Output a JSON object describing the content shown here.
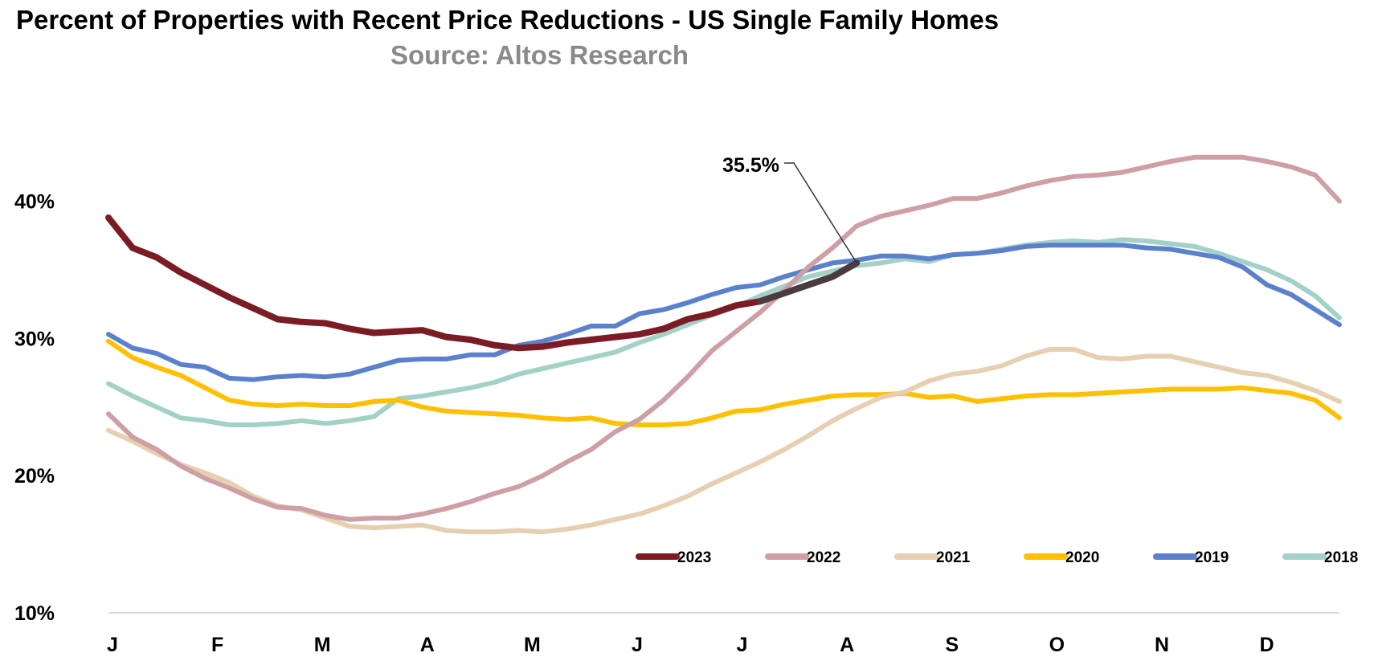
{
  "chart_data": {
    "type": "line",
    "title": "Percent of Properties with Recent Price Reductions - US Single Family Homes",
    "subtitle": "Source: Altos Research",
    "x_ticks": [
      "J",
      "F",
      "M",
      "A",
      "M",
      "J",
      "J",
      "A",
      "S",
      "O",
      "N",
      "D"
    ],
    "y_ticks": [
      "10%",
      "20%",
      "30%",
      "40%"
    ],
    "ylim": [
      10,
      46
    ],
    "xlim": [
      1,
      52
    ],
    "grid": false,
    "legend_position": "bottom-right",
    "annotation": {
      "text": "35.5%",
      "series": "2023",
      "week": 32
    },
    "series": [
      {
        "name": "2023",
        "color": "#7b1c24",
        "x": [
          1,
          2,
          3,
          4,
          5,
          6,
          7,
          8,
          9,
          10,
          11,
          12,
          13,
          14,
          15,
          16,
          17,
          18,
          19,
          20,
          21,
          22,
          23,
          24,
          25,
          26,
          27,
          28,
          29,
          30,
          31,
          32
        ],
        "values": [
          38.8,
          36.6,
          35.9,
          34.8,
          33.9,
          33.0,
          32.2,
          31.4,
          31.2,
          31.1,
          30.7,
          30.4,
          30.5,
          30.6,
          30.1,
          29.9,
          29.5,
          29.3,
          29.4,
          29.7,
          29.9,
          30.1,
          30.3,
          30.7,
          31.4,
          31.8,
          32.4,
          32.7,
          33.3,
          33.9,
          34.5,
          35.5
        ]
      },
      {
        "name": "2022",
        "color": "#cf9fa6",
        "x": [
          1,
          2,
          3,
          4,
          5,
          6,
          7,
          8,
          9,
          10,
          11,
          12,
          13,
          14,
          15,
          16,
          17,
          18,
          19,
          20,
          21,
          22,
          23,
          24,
          25,
          26,
          27,
          28,
          29,
          30,
          31,
          32,
          33,
          34,
          35,
          36,
          37,
          38,
          39,
          40,
          41,
          42,
          43,
          44,
          45,
          46,
          47,
          48,
          49,
          50,
          51,
          52
        ],
        "values": [
          24.5,
          22.8,
          21.9,
          20.7,
          19.8,
          19.1,
          18.3,
          17.7,
          17.6,
          17.1,
          16.8,
          16.9,
          16.9,
          17.2,
          17.6,
          18.1,
          18.7,
          19.2,
          20.0,
          21.0,
          21.9,
          23.2,
          24.1,
          25.5,
          27.2,
          29.1,
          30.5,
          31.9,
          33.5,
          35.2,
          36.6,
          38.2,
          38.9,
          39.3,
          39.7,
          40.2,
          40.2,
          40.6,
          41.1,
          41.5,
          41.8,
          41.9,
          42.1,
          42.5,
          42.9,
          43.2,
          43.2,
          43.2,
          42.9,
          42.5,
          41.9,
          40.0
        ]
      },
      {
        "name": "2021",
        "color": "#e7cfb1",
        "x": [
          1,
          2,
          3,
          4,
          5,
          6,
          7,
          8,
          9,
          10,
          11,
          12,
          13,
          14,
          15,
          16,
          17,
          18,
          19,
          20,
          21,
          22,
          23,
          24,
          25,
          26,
          27,
          28,
          29,
          30,
          31,
          32,
          33,
          34,
          35,
          36,
          37,
          38,
          39,
          40,
          41,
          42,
          43,
          44,
          45,
          46,
          47,
          48,
          49,
          50,
          51,
          52
        ],
        "values": [
          23.3,
          22.5,
          21.6,
          20.8,
          20.2,
          19.5,
          18.5,
          17.8,
          17.5,
          16.9,
          16.3,
          16.2,
          16.3,
          16.4,
          16.0,
          15.9,
          15.9,
          16.0,
          15.9,
          16.1,
          16.4,
          16.8,
          17.2,
          17.8,
          18.5,
          19.4,
          20.2,
          21.0,
          21.9,
          22.9,
          24.0,
          24.9,
          25.7,
          26.1,
          26.9,
          27.4,
          27.6,
          28.0,
          28.7,
          29.2,
          29.2,
          28.6,
          28.5,
          28.7,
          28.7,
          28.3,
          27.9,
          27.5,
          27.3,
          26.8,
          26.2,
          25.4
        ]
      },
      {
        "name": "2020",
        "color": "#ffc000",
        "x": [
          1,
          2,
          3,
          4,
          5,
          6,
          7,
          8,
          9,
          10,
          11,
          12,
          13,
          14,
          15,
          16,
          17,
          18,
          19,
          20,
          21,
          22,
          23,
          24,
          25,
          26,
          27,
          28,
          29,
          30,
          31,
          32,
          33,
          34,
          35,
          36,
          37,
          38,
          39,
          40,
          41,
          42,
          43,
          44,
          45,
          46,
          47,
          48,
          49,
          50,
          51,
          52
        ],
        "values": [
          29.8,
          28.6,
          27.9,
          27.3,
          26.4,
          25.5,
          25.2,
          25.1,
          25.2,
          25.1,
          25.1,
          25.4,
          25.5,
          25.0,
          24.7,
          24.6,
          24.5,
          24.4,
          24.2,
          24.1,
          24.2,
          23.8,
          23.7,
          23.7,
          23.8,
          24.2,
          24.7,
          24.8,
          25.2,
          25.5,
          25.8,
          25.9,
          25.9,
          26.0,
          25.7,
          25.8,
          25.4,
          25.6,
          25.8,
          25.9,
          25.9,
          26.0,
          26.1,
          26.2,
          26.3,
          26.3,
          26.3,
          26.4,
          26.2,
          26.0,
          25.5,
          24.2
        ]
      },
      {
        "name": "2019",
        "color": "#5b81cc",
        "x": [
          1,
          2,
          3,
          4,
          5,
          6,
          7,
          8,
          9,
          10,
          11,
          12,
          13,
          14,
          15,
          16,
          17,
          18,
          19,
          20,
          21,
          22,
          23,
          24,
          25,
          26,
          27,
          28,
          29,
          30,
          31,
          32,
          33,
          34,
          35,
          36,
          37,
          38,
          39,
          40,
          41,
          42,
          43,
          44,
          45,
          46,
          47,
          48,
          49,
          50,
          51,
          52
        ],
        "values": [
          30.3,
          29.3,
          28.9,
          28.1,
          27.9,
          27.1,
          27.0,
          27.2,
          27.3,
          27.2,
          27.4,
          27.9,
          28.4,
          28.5,
          28.5,
          28.8,
          28.8,
          29.5,
          29.8,
          30.3,
          30.9,
          30.9,
          31.8,
          32.1,
          32.6,
          33.2,
          33.7,
          33.9,
          34.5,
          35.0,
          35.5,
          35.7,
          36.0,
          36.0,
          35.8,
          36.1,
          36.2,
          36.4,
          36.7,
          36.8,
          36.8,
          36.8,
          36.8,
          36.6,
          36.5,
          36.2,
          35.9,
          35.2,
          33.9,
          33.2,
          32.1,
          31.0
        ]
      },
      {
        "name": "2018",
        "color": "#a3d1c8",
        "x": [
          1,
          2,
          3,
          4,
          5,
          6,
          7,
          8,
          9,
          10,
          11,
          12,
          13,
          14,
          15,
          16,
          17,
          18,
          19,
          20,
          21,
          22,
          23,
          24,
          25,
          26,
          27,
          28,
          29,
          30,
          31,
          32,
          33,
          34,
          35,
          36,
          37,
          38,
          39,
          40,
          41,
          42,
          43,
          44,
          45,
          46,
          47,
          48,
          49,
          50,
          51,
          52
        ],
        "values": [
          26.7,
          25.8,
          25.0,
          24.2,
          24.0,
          23.7,
          23.7,
          23.8,
          24.0,
          23.8,
          24.0,
          24.3,
          25.6,
          25.8,
          26.1,
          26.4,
          26.8,
          27.4,
          27.8,
          28.2,
          28.6,
          29.0,
          29.7,
          30.3,
          31.0,
          31.7,
          32.3,
          33.1,
          33.8,
          34.5,
          34.9,
          35.3,
          35.5,
          35.8,
          35.6,
          36.1,
          36.2,
          36.5,
          36.8,
          37.0,
          37.1,
          37.0,
          37.2,
          37.1,
          36.9,
          36.7,
          36.2,
          35.6,
          35.0,
          34.2,
          33.1,
          31.5
        ]
      }
    ]
  }
}
